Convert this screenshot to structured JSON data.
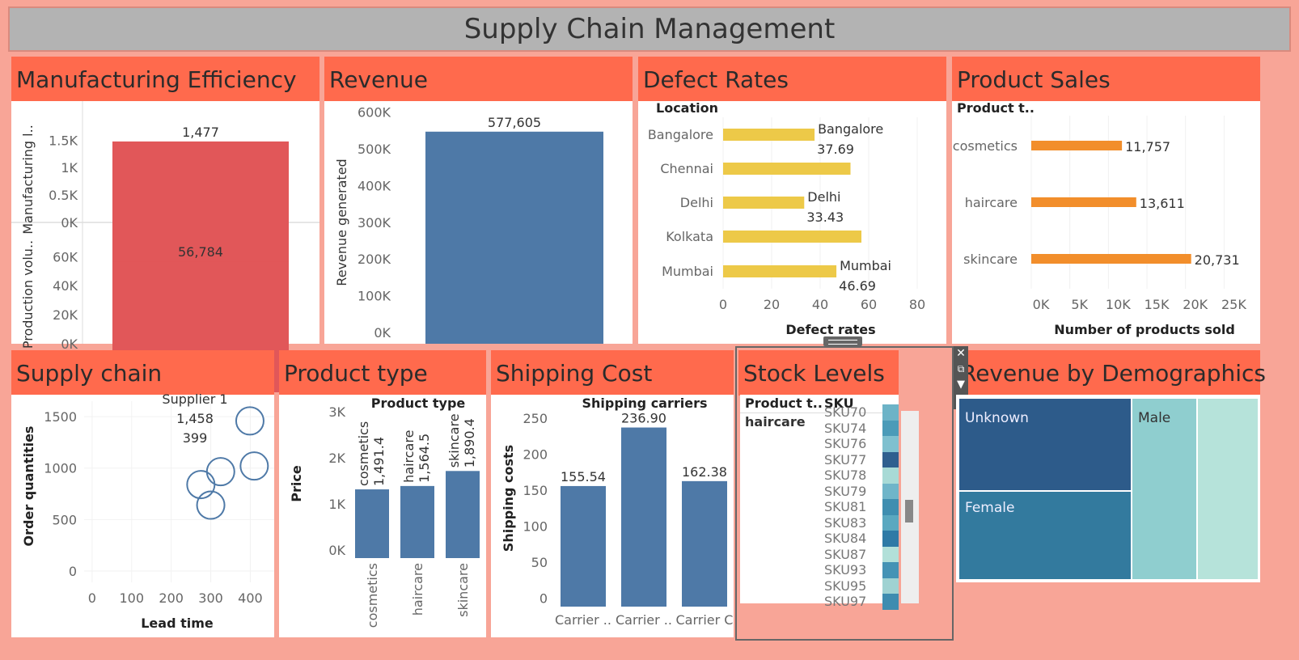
{
  "title": "Supply Chain Management",
  "panels": {
    "manufacturing": "Manufacturing Efficiency",
    "revenue": "Revenue",
    "defects": "Defect Rates",
    "sales": "Product Sales",
    "supply": "Supply chain",
    "ptype": "Product type",
    "shipping": "Shipping Cost",
    "stock": "Stock Levels",
    "demo": "Revenue by Demographics"
  },
  "colors": {
    "red": "#e15759",
    "blue": "#4e79a7",
    "yellow": "#edc948",
    "orange": "#f28e2b",
    "header": "#ff6a4d"
  },
  "icons": [
    "close-icon",
    "popout-icon",
    "filter-icon",
    "dropdown-icon",
    "drag-handle-icon"
  ],
  "chart_data": [
    {
      "id": "manufacturing",
      "type": "bar",
      "panes": [
        {
          "ylabel": "Manufacturing l..",
          "value": 1477,
          "label": "1,477",
          "ylim": [
            0,
            1800
          ],
          "ticks": [
            {
              "v": 0,
              "t": "0K"
            },
            {
              "v": 500,
              "t": "0.5K"
            },
            {
              "v": 1000,
              "t": "1K"
            },
            {
              "v": 1500,
              "t": "1.5K"
            }
          ]
        },
        {
          "ylabel": "Production volu..",
          "value": 56784,
          "label": "56,784",
          "ylim": [
            0,
            68000
          ],
          "ticks": [
            {
              "v": 0,
              "t": "0K"
            },
            {
              "v": 20000,
              "t": "20K"
            },
            {
              "v": 40000,
              "t": "40K"
            },
            {
              "v": 60000,
              "t": "60K"
            }
          ]
        }
      ]
    },
    {
      "id": "revenue",
      "type": "bar",
      "ylabel": "Revenue generated",
      "value": 577605,
      "label": "577,605",
      "ylim": [
        0,
        630000
      ],
      "ticks": [
        {
          "v": 0,
          "t": "0K"
        },
        {
          "v": 100000,
          "t": "100K"
        },
        {
          "v": 200000,
          "t": "200K"
        },
        {
          "v": 300000,
          "t": "300K"
        },
        {
          "v": 400000,
          "t": "400K"
        },
        {
          "v": 500000,
          "t": "500K"
        },
        {
          "v": 600000,
          "t": "600K"
        }
      ]
    },
    {
      "id": "defects",
      "type": "bar",
      "orientation": "horizontal",
      "row_header": "Location",
      "xlabel": "Defect rates",
      "categories": [
        "Bangalore",
        "Chennai",
        "Delhi",
        "Kolkata",
        "Mumbai"
      ],
      "values": [
        37.69,
        52.5,
        33.43,
        57.0,
        46.69
      ],
      "annotations": [
        {
          "cat": 0,
          "name": "Bangalore",
          "value": "37.69"
        },
        {
          "cat": 2,
          "name": "Delhi",
          "value": "33.43"
        },
        {
          "cat": 4,
          "name": "Mumbai",
          "value": "46.69"
        }
      ],
      "xlim": [
        0,
        85
      ],
      "ticks": [
        0,
        20,
        40,
        60,
        80
      ]
    },
    {
      "id": "sales",
      "type": "bar",
      "orientation": "horizontal",
      "row_header": "Product t..",
      "xlabel": "Number of products sold",
      "categories": [
        "cosmetics",
        "haircare",
        "skincare"
      ],
      "values": [
        11757,
        13611,
        20731
      ],
      "labels": [
        "11,757",
        "13,611",
        "20,731"
      ],
      "xlim": [
        0,
        28000
      ],
      "ticks": [
        {
          "v": 0,
          "t": "0K"
        },
        {
          "v": 5000,
          "t": "5K"
        },
        {
          "v": 10000,
          "t": "10K"
        },
        {
          "v": 15000,
          "t": "15K"
        },
        {
          "v": 20000,
          "t": "20K"
        },
        {
          "v": 25000,
          "t": "25K"
        }
      ]
    },
    {
      "id": "supply",
      "type": "scatter",
      "xlabel": "Lead time",
      "ylabel": "Order quantities",
      "points": [
        {
          "x": 399,
          "y": 1458
        },
        {
          "x": 410,
          "y": 1020
        },
        {
          "x": 325,
          "y": 965
        },
        {
          "x": 275,
          "y": 840
        },
        {
          "x": 300,
          "y": 640
        }
      ],
      "tooltip": [
        "Supplier 1",
        "1,458",
        "399"
      ],
      "xlim": [
        -10,
        440
      ],
      "ylim": [
        0,
        1650
      ],
      "xticks": [
        0,
        100,
        200,
        300,
        400
      ],
      "yticks": [
        0,
        500,
        1000,
        1500
      ]
    },
    {
      "id": "ptype",
      "type": "bar",
      "col_header": "Product type",
      "ylabel": "Price",
      "categories": [
        "cosmetics",
        "haircare",
        "skincare"
      ],
      "values": [
        1491.4,
        1564.5,
        1890.4
      ],
      "labels": [
        "cosmetics\n1,491.4",
        "haircare\n1,564.5",
        "skincare\n1,890.4"
      ],
      "ylim": [
        0,
        3300
      ],
      "ticks": [
        {
          "v": 0,
          "t": "0K"
        },
        {
          "v": 1000,
          "t": "1K"
        },
        {
          "v": 2000,
          "t": "2K"
        },
        {
          "v": 3000,
          "t": "3K"
        }
      ]
    },
    {
      "id": "shipping",
      "type": "bar",
      "col_header": "Shipping carriers",
      "ylabel": "Shipping costs",
      "categories": [
        "Carrier ..",
        "Carrier ..",
        "Carrier C"
      ],
      "values": [
        155.54,
        236.9,
        162.38
      ],
      "labels": [
        "155.54",
        "236.90",
        "162.38"
      ],
      "ylim": [
        -12,
        260
      ],
      "ticks": [
        0,
        50,
        100,
        150,
        200,
        250
      ]
    },
    {
      "id": "stock",
      "type": "table",
      "headers": [
        "Product t..",
        "SKU"
      ],
      "group": "haircare",
      "skus": [
        "SKU70",
        "SKU74",
        "SKU76",
        "SKU77",
        "SKU78",
        "SKU79",
        "SKU81",
        "SKU83",
        "SKU84",
        "SKU87",
        "SKU93",
        "SKU95",
        "SKU97"
      ],
      "swatches": [
        "#6db3c7",
        "#4b9bb8",
        "#7fc0cf",
        "#2f5f8f",
        "#a8dad6",
        "#6fb5c9",
        "#3f8eb0",
        "#5aa8c0",
        "#2e7aa6",
        "#b2e0d9",
        "#4593b5",
        "#9fd2d2",
        "#3e8cb0"
      ]
    },
    {
      "id": "demo",
      "type": "treemap",
      "cells": [
        {
          "label": "Unknown",
          "color": "#2d5b8a"
        },
        {
          "label": "Female",
          "color": "#337a9e"
        },
        {
          "label": "Male",
          "color": "#8fcecf"
        },
        {
          "label": "",
          "color": "#b6e3da"
        }
      ]
    }
  ]
}
